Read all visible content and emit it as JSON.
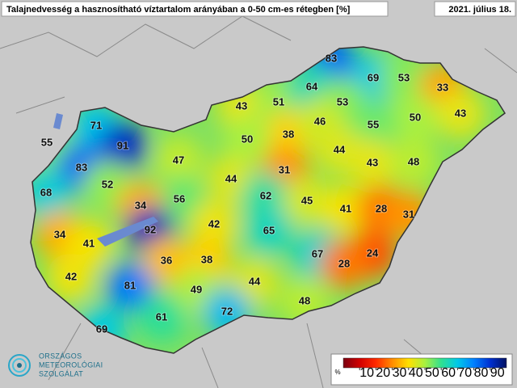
{
  "header": {
    "title": "Talajnedvesség a hasznosítható víztartalom arányában a 0-50 cm-es rétegben [%]",
    "date": "2021. július 18."
  },
  "stations": [
    83,
    69,
    53,
    33,
    43,
    51,
    64,
    53,
    50,
    43,
    71,
    55,
    91,
    38,
    46,
    55,
    50,
    44,
    47,
    31,
    43,
    48,
    83,
    52,
    44,
    62,
    68,
    56,
    34,
    45,
    41,
    28,
    31,
    92,
    42,
    65,
    34,
    41,
    36,
    38,
    67,
    24,
    28,
    42,
    81,
    49,
    44,
    48,
    72,
    61,
    69
  ],
  "legend": {
    "unit": "%",
    "ticks": [
      10,
      20,
      30,
      40,
      50,
      60,
      70,
      80,
      90
    ],
    "range": [
      0,
      100
    ],
    "colors": [
      "#7a0010",
      "#d00000",
      "#ff2a00",
      "#ff8c00",
      "#ffe000",
      "#a8f040",
      "#30e090",
      "#00c8e8",
      "#0080ff",
      "#0030d0",
      "#001060"
    ]
  },
  "logo": [
    "ORSZÁGOS",
    "METEOROLÓGIAI",
    "SZOLGÁLAT"
  ]
}
